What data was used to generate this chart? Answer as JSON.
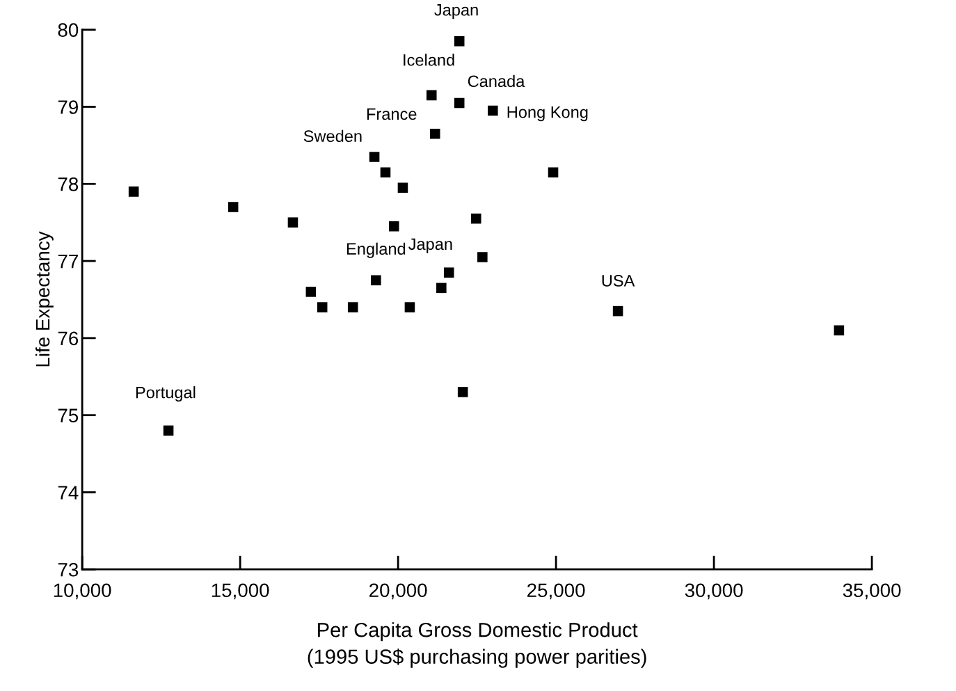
{
  "chart_data": {
    "type": "scatter",
    "xlabel": "Per Capita Gross Domestic Product\n(1995 US$ purchasing power parities)",
    "ylabel": "Life Expectancy",
    "series": [
      {
        "color": "#000000",
        "x": [
          11630,
          14780,
          16670,
          17240,
          17600,
          18570,
          19250,
          19600,
          19300,
          19870,
          20150,
          20370,
          21060,
          21170,
          21370,
          21610,
          21940,
          21940,
          22050,
          22470,
          22670,
          23000,
          24910,
          26960,
          33960,
          12730
        ],
        "values": [
          77.9,
          77.7,
          77.5,
          76.6,
          76.4,
          76.4,
          78.35,
          78.15,
          76.75,
          77.45,
          77.95,
          76.4,
          79.15,
          78.65,
          76.65,
          76.85,
          79.85,
          79.05,
          75.3,
          77.55,
          77.05,
          78.95,
          78.15,
          76.35,
          76.1,
          74.8
        ]
      }
    ],
    "marker": "square",
    "xlim": [
      10000,
      35000
    ],
    "ylim": [
      73,
      80
    ],
    "xticks": [
      {
        "value": 10000,
        "label": "10,000"
      },
      {
        "value": 15000,
        "label": "15,000"
      },
      {
        "value": 20000,
        "label": "20,000"
      },
      {
        "value": 25000,
        "label": "25,000"
      },
      {
        "value": 30000,
        "label": "30,000"
      },
      {
        "value": 35000,
        "label": "35,000"
      }
    ],
    "yticks": [
      73,
      74,
      75,
      76,
      77,
      78,
      79,
      80
    ],
    "annotations": [
      {
        "text": "Japan",
        "x": 21940,
        "y": 79.85
      },
      {
        "text": "Iceland",
        "x": 21060,
        "y": 79.15
      },
      {
        "text": "Canada",
        "x": 21940,
        "y": 79.05
      },
      {
        "text": "Hong Kong",
        "x": 23000,
        "y": 78.95
      },
      {
        "text": "France",
        "x": 21170,
        "y": 78.65
      },
      {
        "text": "Sweden",
        "x": 19250,
        "y": 78.35
      },
      {
        "text": "England",
        "x": 19300,
        "y": 76.75
      },
      {
        "text": "Japan",
        "x": 21610,
        "y": 76.85
      },
      {
        "text": "USA",
        "x": 26960,
        "y": 76.35
      },
      {
        "text": "Portugal",
        "x": 12730,
        "y": 74.8
      }
    ],
    "grid": false,
    "legend": false
  }
}
